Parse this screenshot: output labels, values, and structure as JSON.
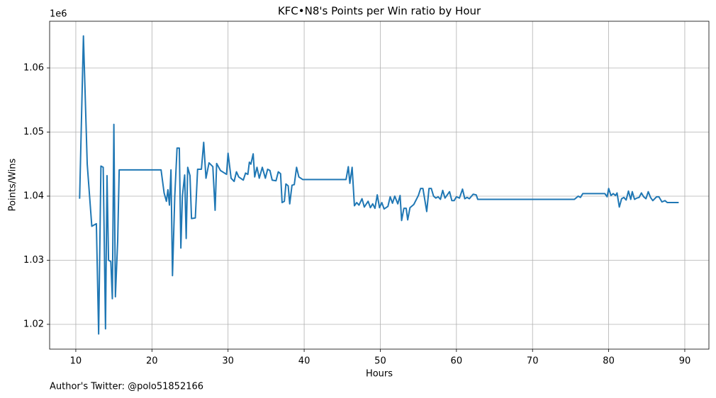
{
  "chart_data": {
    "type": "line",
    "title": "KFC•N8's Points per Win ratio by Hour",
    "xlabel": "Hours",
    "ylabel": "Points/Wins",
    "y_offset_label": "1e6",
    "footnote": "Author's Twitter: @polo51852166",
    "grid": true,
    "xlim": [
      6.56,
      93.17
    ],
    "xticks": [
      10,
      20,
      30,
      40,
      50,
      60,
      70,
      80,
      90
    ],
    "ylim": [
      1016130,
      1067290
    ],
    "yticks": [
      {
        "value": 1020000,
        "label": "1.02"
      },
      {
        "value": 1030000,
        "label": "1.03"
      },
      {
        "value": 1040000,
        "label": "1.04"
      },
      {
        "value": 1050000,
        "label": "1.05"
      },
      {
        "value": 1060000,
        "label": "1.06"
      }
    ],
    "series": [
      {
        "color": "#1f77b4",
        "x": [
          10.5,
          11.0,
          11.5,
          12.1,
          12.7,
          13.0,
          13.3,
          13.6,
          13.9,
          14.1,
          14.3,
          14.6,
          14.8,
          15.0,
          15.2,
          15.5,
          15.7,
          21.2,
          21.6,
          21.9,
          22.1,
          22.3,
          22.5,
          22.7,
          23.0,
          23.3,
          23.6,
          23.8,
          24.0,
          24.3,
          24.5,
          24.7,
          25.0,
          25.2,
          25.7,
          26.0,
          26.5,
          26.8,
          27.1,
          27.5,
          28.0,
          28.3,
          28.5,
          29.0,
          29.8,
          30.0,
          30.4,
          30.8,
          31.1,
          31.4,
          32.0,
          32.3,
          32.6,
          32.8,
          33.0,
          33.3,
          33.5,
          33.8,
          34.1,
          34.5,
          34.9,
          35.2,
          35.5,
          35.8,
          36.3,
          36.6,
          36.9,
          37.1,
          37.4,
          37.6,
          37.9,
          38.1,
          38.4,
          38.7,
          39.0,
          39.3,
          39.8,
          45.5,
          45.8,
          46.0,
          46.3,
          46.6,
          46.9,
          47.2,
          47.6,
          47.9,
          48.4,
          48.7,
          49.0,
          49.3,
          49.6,
          49.9,
          50.2,
          50.5,
          51.0,
          51.3,
          51.6,
          51.9,
          52.3,
          52.6,
          52.8,
          53.1,
          53.4,
          53.6,
          53.9,
          54.4,
          55.0,
          55.3,
          55.6,
          56.1,
          56.4,
          56.7,
          57.0,
          57.3,
          57.6,
          57.9,
          58.2,
          58.5,
          58.8,
          59.1,
          59.4,
          59.7,
          60.0,
          60.4,
          60.8,
          61.1,
          61.4,
          61.7,
          62.2,
          62.6,
          62.8,
          75.5,
          76.0,
          76.3,
          76.6,
          79.5,
          79.8,
          80.0,
          80.3,
          80.6,
          80.9,
          81.1,
          81.4,
          81.7,
          82.0,
          82.3,
          82.6,
          82.9,
          83.1,
          83.4,
          83.7,
          84.0,
          84.3,
          84.6,
          84.9,
          85.2,
          85.5,
          85.8,
          86.3,
          86.6,
          87.0,
          87.4,
          87.7,
          89.2
        ],
        "values": [
          1039600,
          1065000,
          1045000,
          1035300,
          1035700,
          1018500,
          1044700,
          1044500,
          1019300,
          1043200,
          1030000,
          1029800,
          1024000,
          1051200,
          1024300,
          1033000,
          1044100,
          1044100,
          1040500,
          1039200,
          1041000,
          1038600,
          1044100,
          1027600,
          1040000,
          1047500,
          1047500,
          1031900,
          1040000,
          1043300,
          1033400,
          1044500,
          1043200,
          1036500,
          1036600,
          1044200,
          1044200,
          1048400,
          1042800,
          1045200,
          1044600,
          1037800,
          1045100,
          1044000,
          1043400,
          1046700,
          1042800,
          1042300,
          1043800,
          1043000,
          1042500,
          1043600,
          1043400,
          1045300,
          1045000,
          1046600,
          1043000,
          1044500,
          1042800,
          1044500,
          1042800,
          1044200,
          1044000,
          1042500,
          1042400,
          1043800,
          1043500,
          1039000,
          1039200,
          1041900,
          1041600,
          1038800,
          1041700,
          1041800,
          1044500,
          1043000,
          1042600,
          1042600,
          1044600,
          1042000,
          1044500,
          1038500,
          1039000,
          1038600,
          1039600,
          1038300,
          1039200,
          1038200,
          1038800,
          1038100,
          1040200,
          1038200,
          1039000,
          1038000,
          1038400,
          1039900,
          1038900,
          1040000,
          1038800,
          1040100,
          1036200,
          1038100,
          1038100,
          1036300,
          1038200,
          1038700,
          1040100,
          1041200,
          1041200,
          1037600,
          1041200,
          1041200,
          1040000,
          1039700,
          1039900,
          1039500,
          1040900,
          1039700,
          1040200,
          1040700,
          1039300,
          1039300,
          1039900,
          1039700,
          1041100,
          1039600,
          1039800,
          1039600,
          1040300,
          1040200,
          1039500,
          1039500,
          1040000,
          1039800,
          1040400,
          1040400,
          1039900,
          1041200,
          1040100,
          1040400,
          1040100,
          1040500,
          1038300,
          1039600,
          1039800,
          1039400,
          1040800,
          1039500,
          1040700,
          1039500,
          1039700,
          1039800,
          1040500,
          1039900,
          1039600,
          1040700,
          1039800,
          1039300,
          1039900,
          1039900,
          1039100,
          1039300,
          1039000,
          1039000
        ]
      }
    ]
  }
}
